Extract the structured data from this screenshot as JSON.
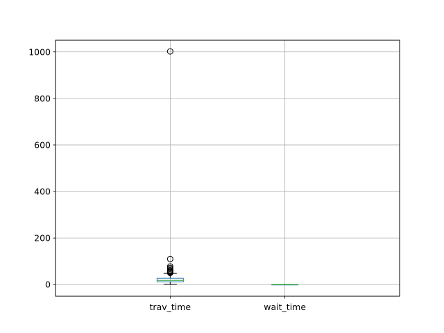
{
  "chart_data": {
    "type": "box",
    "title": "",
    "xlabel": "",
    "ylabel": "",
    "categories": [
      "trav_time",
      "wait_time"
    ],
    "ylim": [
      -50,
      1050
    ],
    "yticks": [
      0,
      200,
      400,
      600,
      800,
      1000
    ],
    "grid": true,
    "colors": {
      "box": "#1f77b4",
      "median": "#2ca02c",
      "whisker": "#000000",
      "grid": "#b0b0b0",
      "flier": "#000000"
    },
    "series": [
      {
        "category": "trav_time",
        "whisker_low": 1,
        "q1": 12,
        "median": 18,
        "q3": 27,
        "whisker_high": 48,
        "fliers": [
          50,
          52,
          55,
          58,
          62,
          67,
          72,
          78,
          110,
          1002
        ]
      },
      {
        "category": "wait_time",
        "whisker_low": 0,
        "q1": 0,
        "median": 0,
        "q3": 0,
        "whisker_high": 0,
        "fliers": []
      }
    ]
  }
}
